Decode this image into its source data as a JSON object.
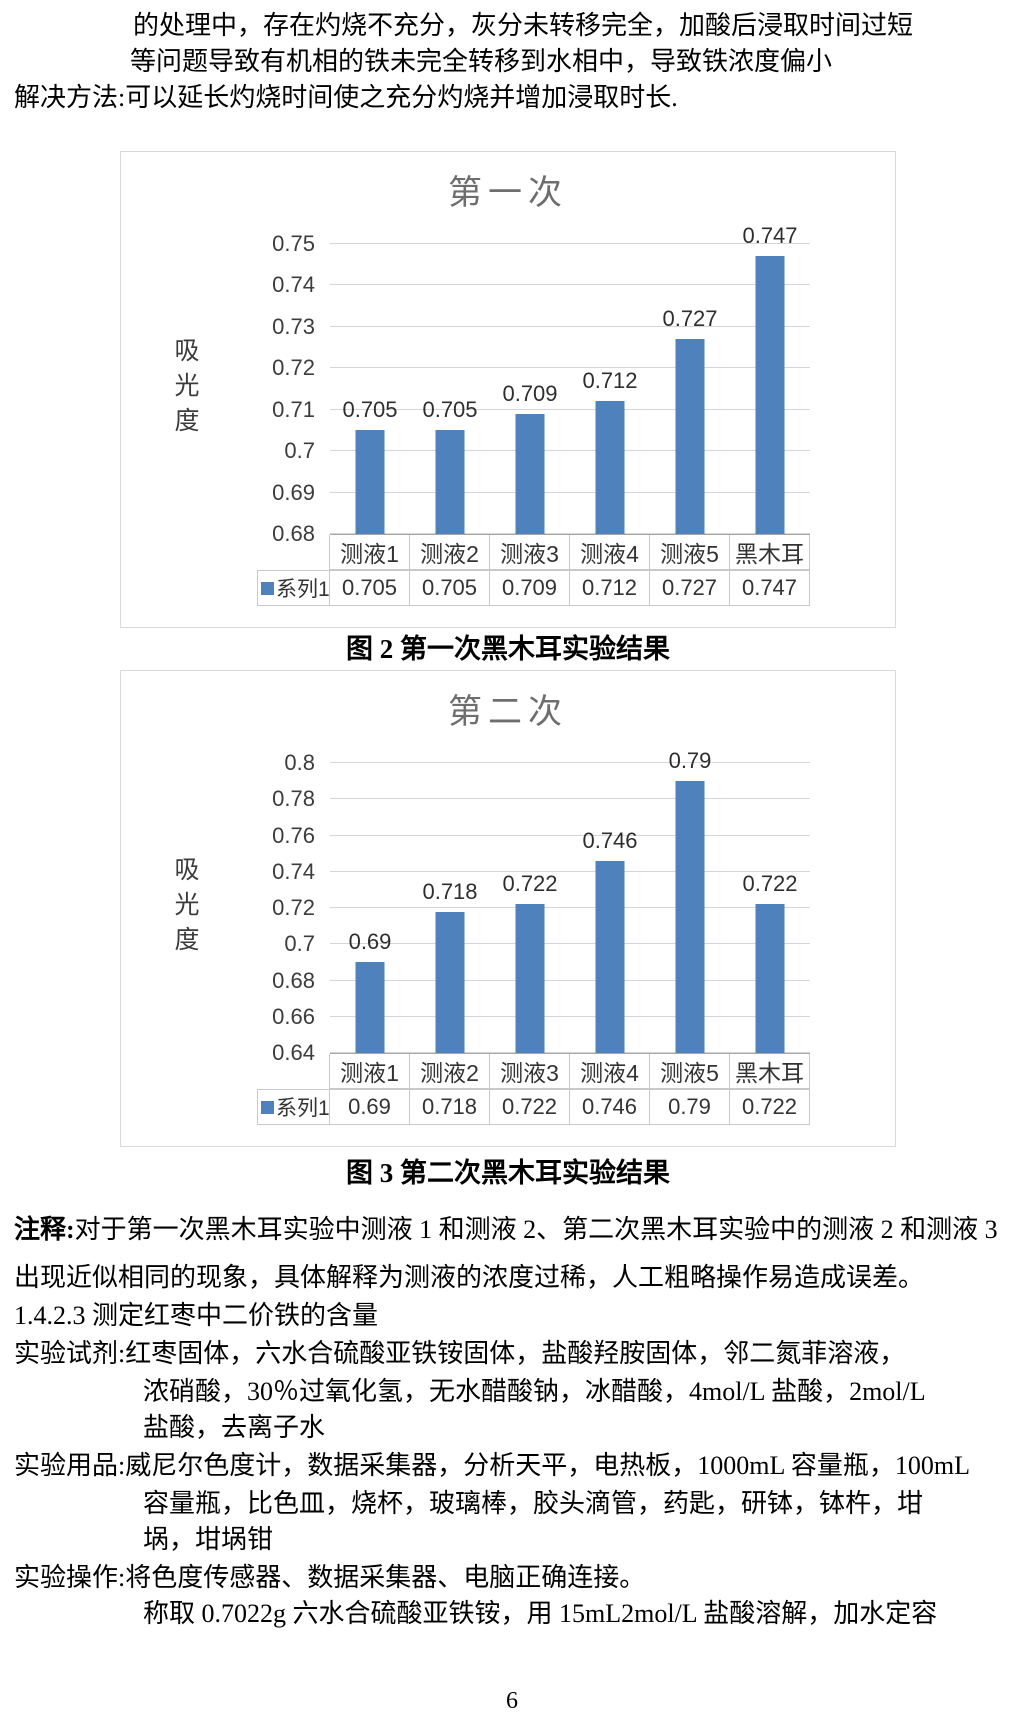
{
  "page": {
    "page_number": "6"
  },
  "intro": {
    "line1": "的处理中，存在灼烧不充分，灰分未转移完全，加酸后浸取时间过短",
    "line2": "等问题导致有机相的铁未完全转移到水相中，导致铁浓度偏小",
    "line3": "解决方法:可以延长灼烧时间使之充分灼烧并增加浸取时长."
  },
  "figure2_caption": "图 2 第一次黑木耳实验结果",
  "figure3_caption": "图 3 第二次黑木耳实验结果",
  "chart_data": [
    {
      "type": "bar",
      "title": "第一次",
      "xlabel": "",
      "ylabel": "吸光度",
      "categories": [
        "测液1",
        "测液2",
        "测液3",
        "测液4",
        "测液5",
        "黑木耳"
      ],
      "series": [
        {
          "name": "系列1",
          "values": [
            0.705,
            0.705,
            0.709,
            0.712,
            0.727,
            0.747
          ],
          "labels": [
            "0.705",
            "0.705",
            "0.709",
            "0.712",
            "0.727",
            "0.747"
          ]
        }
      ],
      "ylim": [
        0.68,
        0.75
      ],
      "yticks": [
        "0.75",
        "0.74",
        "0.73",
        "0.72",
        "0.71",
        "0.7",
        "0.69",
        "0.68"
      ],
      "grid": true,
      "legend_position": "data-table-left"
    },
    {
      "type": "bar",
      "title": "第二次",
      "xlabel": "",
      "ylabel": "吸光度",
      "categories": [
        "测液1",
        "测液2",
        "测液3",
        "测液4",
        "测液5",
        "黑木耳"
      ],
      "series": [
        {
          "name": "系列1",
          "values": [
            0.69,
            0.718,
            0.722,
            0.746,
            0.79,
            0.722
          ],
          "labels": [
            "0.69",
            "0.718",
            "0.722",
            "0.746",
            "0.79",
            "0.722"
          ]
        }
      ],
      "ylim": [
        0.64,
        0.8
      ],
      "yticks": [
        "0.8",
        "0.78",
        "0.76",
        "0.74",
        "0.72",
        "0.7",
        "0.68",
        "0.66",
        "0.64"
      ],
      "grid": true,
      "legend_position": "data-table-left"
    }
  ],
  "notes": {
    "label": "注释:",
    "line1": "对于第一次黑木耳实验中测液 1 和测液 2、第二次黑木耳实验中的测液 2 和测液 3",
    "line2": "出现近似相同的现象，具体解释为测液的浓度过稀，人工粗略操作易造成误差。"
  },
  "section_heading": "1.4.2.3 测定红枣中二价铁的含量",
  "reagents": {
    "line1": "实验试剂:红枣固体，六水合硫酸亚铁铵固体，盐酸羟胺固体，邻二氮菲溶液，",
    "line2": "浓硝酸，30％过氧化氢，无水醋酸钠，冰醋酸，4mol/L 盐酸，2mol/L",
    "line3": "盐酸，去离子水"
  },
  "supplies": {
    "line1": "实验用品:威尼尔色度计，数据采集器，分析天平，电热板，1000mL 容量瓶，100mL",
    "line2": "容量瓶，比色皿，烧杯，玻璃棒，胶头滴管，药匙，研钵，钵杵，坩",
    "line3": "埚，坩埚钳"
  },
  "operation": {
    "line1": "实验操作:将色度传感器、数据采集器、电脑正确连接。",
    "line2": "称取 0.7022g 六水合硫酸亚铁铵，用 15mL2mol/L 盐酸溶解，加水定容"
  },
  "colors": {
    "bar": "#4F81BD",
    "gridline": "#d6d6d6",
    "chart_title": "#6e6e6e",
    "axis_text": "#3c3c3c",
    "table_border": "#c9c9c9",
    "frame_border": "#d9d9d9"
  }
}
